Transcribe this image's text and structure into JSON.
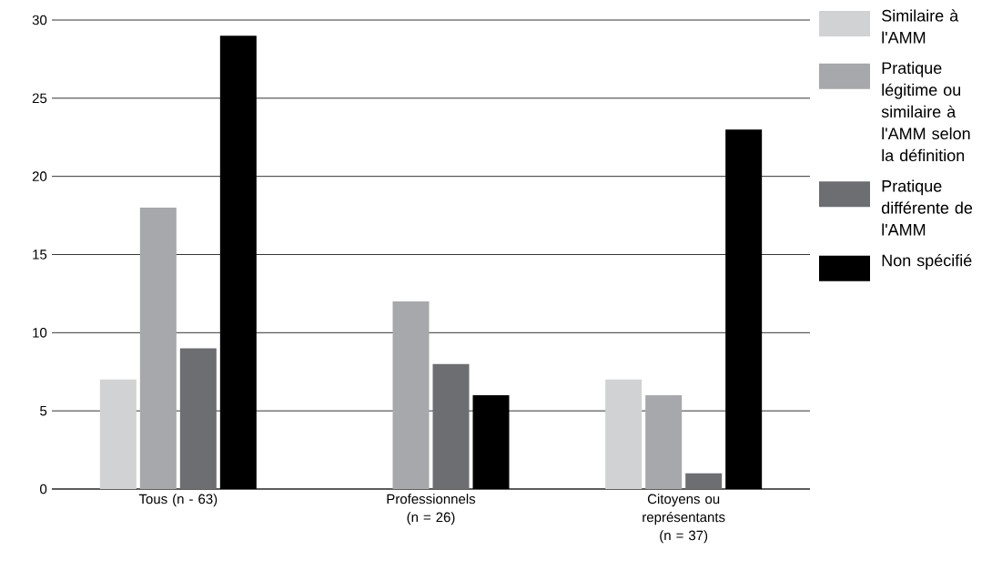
{
  "chart_data": {
    "type": "bar",
    "categories": [
      "Tous (n - 63)",
      "Professionnels (n = 26)",
      "Citoyens ou représentants (n = 37)"
    ],
    "series": [
      {
        "name": "Similaire à l'AMM",
        "color": "#d1d2d4",
        "values": [
          7,
          0,
          7
        ]
      },
      {
        "name": "Pratique légitime ou similaire à l'AMM selon la définition",
        "color": "#a7a8ab",
        "values": [
          18,
          12,
          6
        ]
      },
      {
        "name": "Pratique différente de l'AMM",
        "color": "#6d6e71",
        "values": [
          9,
          8,
          1
        ]
      },
      {
        "name": "Non spécifié",
        "color": "#000000",
        "values": [
          29,
          6,
          23
        ]
      }
    ],
    "ylim": [
      0,
      30
    ],
    "yticks": [
      0,
      5,
      10,
      15,
      20,
      25,
      30
    ],
    "grid": "y",
    "legend": "right"
  }
}
